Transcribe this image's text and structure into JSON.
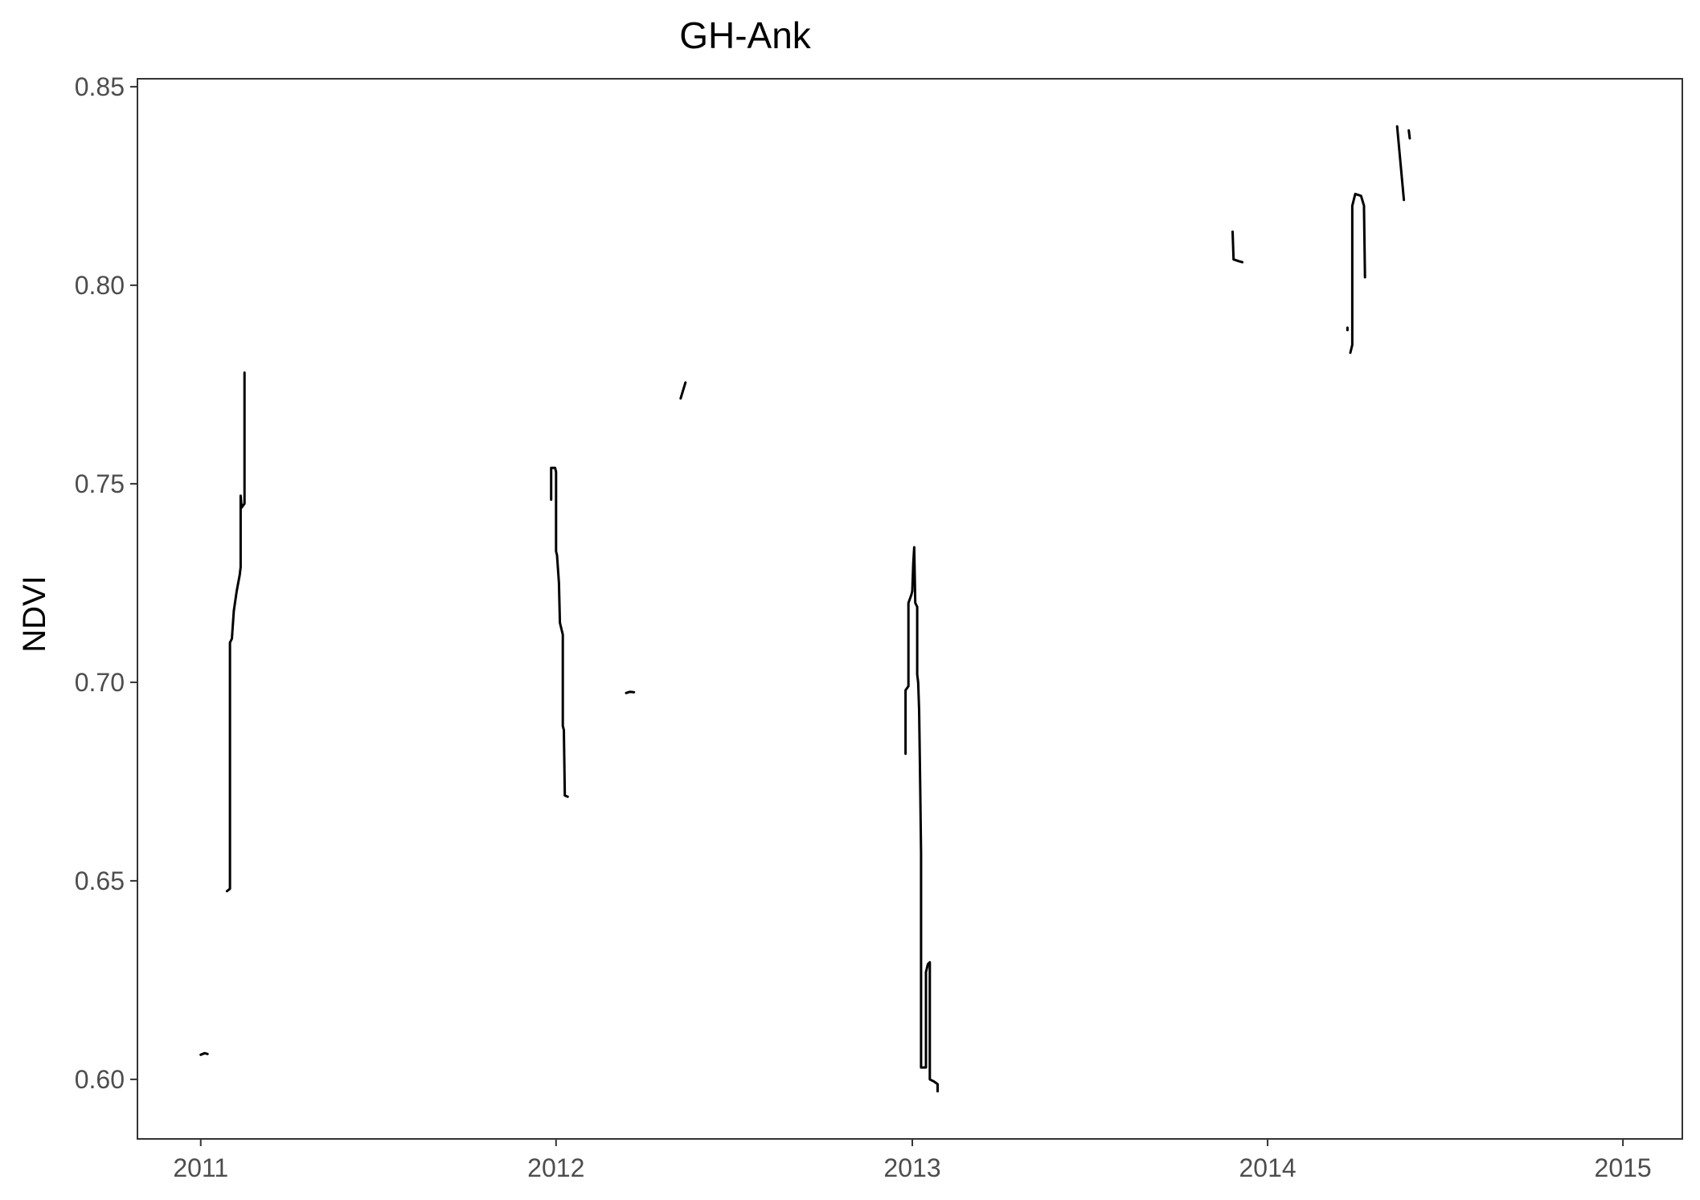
{
  "chart_data": {
    "type": "line",
    "title": "GH-Ank",
    "xlabel": "",
    "ylabel": "NDVI",
    "x_format": "date",
    "xlim": [
      "2010-10-28",
      "2015-03-03"
    ],
    "ylim": [
      0.585,
      0.852
    ],
    "x_ticks": [
      {
        "date": "2011-01-01",
        "label": "2011"
      },
      {
        "date": "2012-01-01",
        "label": "2012"
      },
      {
        "date": "2013-01-01",
        "label": "2013"
      },
      {
        "date": "2014-01-01",
        "label": "2014"
      },
      {
        "date": "2015-01-01",
        "label": "2015"
      }
    ],
    "y_ticks": [
      {
        "value": 0.6,
        "label": "0.60"
      },
      {
        "value": 0.65,
        "label": "0.65"
      },
      {
        "value": 0.7,
        "label": "0.70"
      },
      {
        "value": 0.75,
        "label": "0.75"
      },
      {
        "value": 0.8,
        "label": "0.80"
      },
      {
        "value": 0.85,
        "label": "0.85"
      }
    ],
    "grid": false,
    "legend": "none",
    "line_color": "#000000",
    "segments": [
      [
        [
          "2011-01-01",
          0.6062
        ],
        [
          "2011-01-05",
          0.6066
        ],
        [
          "2011-01-08",
          0.6064
        ]
      ],
      [
        [
          "2011-01-28",
          0.6474
        ],
        [
          "2011-01-31",
          0.648
        ],
        [
          "2011-01-31",
          0.71
        ],
        [
          "2011-02-02",
          0.711
        ],
        [
          "2011-02-04",
          0.718
        ],
        [
          "2011-02-07",
          0.723
        ],
        [
          "2011-02-10",
          0.727
        ],
        [
          "2011-02-11",
          0.729
        ],
        [
          "2011-02-11",
          0.747
        ],
        [
          "2011-02-12",
          0.744
        ],
        [
          "2011-02-15",
          0.745
        ],
        [
          "2011-02-15",
          0.778
        ]
      ],
      [
        [
          "2011-12-27",
          0.746
        ],
        [
          "2011-12-27",
          0.754
        ],
        [
          "2011-12-31",
          0.754
        ],
        [
          "2012-01-01",
          0.753
        ],
        [
          "2012-01-01",
          0.733
        ],
        [
          "2012-01-02",
          0.732
        ],
        [
          "2012-01-04",
          0.725
        ],
        [
          "2012-01-05",
          0.715
        ],
        [
          "2012-01-08",
          0.712
        ],
        [
          "2012-01-08",
          0.689
        ],
        [
          "2012-01-09",
          0.688
        ],
        [
          "2012-01-10",
          0.6715
        ],
        [
          "2012-01-13",
          0.6712
        ]
      ],
      [
        [
          "2012-03-13",
          0.6973
        ],
        [
          "2012-03-17",
          0.6976
        ],
        [
          "2012-03-21",
          0.6975
        ]
      ],
      [
        [
          "2012-05-08",
          0.7715
        ],
        [
          "2012-05-13",
          0.7755
        ]
      ],
      [
        [
          "2012-12-25",
          0.682
        ],
        [
          "2012-12-25",
          0.698
        ],
        [
          "2012-12-28",
          0.699
        ],
        [
          "2012-12-28",
          0.72
        ],
        [
          "2012-12-31",
          0.722
        ],
        [
          "2013-01-01",
          0.723
        ],
        [
          "2013-01-02",
          0.73
        ],
        [
          "2013-01-03",
          0.734
        ],
        [
          "2013-01-04",
          0.72
        ],
        [
          "2013-01-06",
          0.719
        ],
        [
          "2013-01-06",
          0.702
        ],
        [
          "2013-01-07",
          0.7
        ],
        [
          "2013-01-08",
          0.693
        ],
        [
          "2013-01-09",
          0.676
        ],
        [
          "2013-01-10",
          0.657
        ],
        [
          "2013-01-10",
          0.603
        ],
        [
          "2013-01-15",
          0.603
        ],
        [
          "2013-01-15",
          0.627
        ],
        [
          "2013-01-17",
          0.629
        ],
        [
          "2013-01-19",
          0.6295
        ],
        [
          "2013-01-19",
          0.6
        ],
        [
          "2013-01-23",
          0.5995
        ],
        [
          "2013-01-27",
          0.5988
        ],
        [
          "2013-01-27",
          0.597
        ]
      ],
      [
        [
          "2013-11-26",
          0.8135
        ],
        [
          "2013-11-27",
          0.8065
        ],
        [
          "2013-12-03",
          0.806
        ],
        [
          "2013-12-06",
          0.8058
        ]
      ],
      [
        [
          "2014-03-24",
          0.7893
        ],
        [
          "2014-03-24",
          0.7887
        ]
      ],
      [
        [
          "2014-03-27",
          0.783
        ],
        [
          "2014-03-29",
          0.785
        ],
        [
          "2014-03-29",
          0.82
        ],
        [
          "2014-04-01",
          0.823
        ],
        [
          "2014-04-07",
          0.8225
        ],
        [
          "2014-04-10",
          0.82
        ],
        [
          "2014-04-10",
          0.819
        ],
        [
          "2014-04-11",
          0.802
        ]
      ],
      [
        [
          "2014-05-14",
          0.84
        ],
        [
          "2014-05-21",
          0.8215
        ]
      ],
      [
        [
          "2014-05-26",
          0.839
        ],
        [
          "2014-05-27",
          0.837
        ]
      ]
    ]
  }
}
